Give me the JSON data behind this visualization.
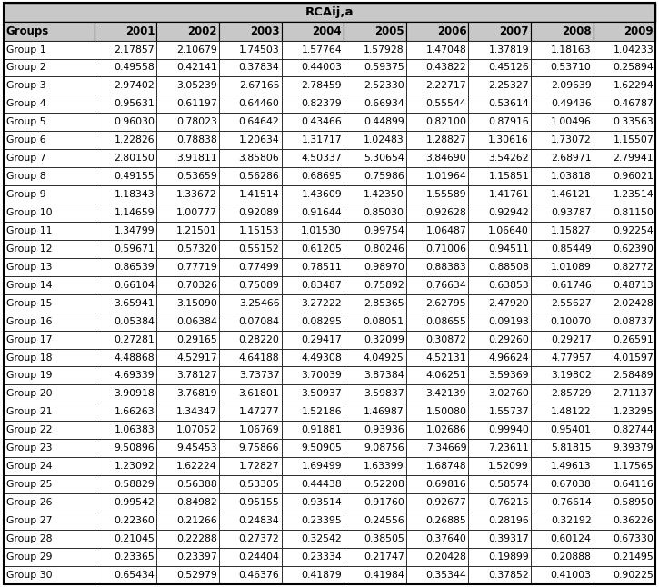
{
  "title": "RCAij,a",
  "columns": [
    "Groups",
    "2001",
    "2002",
    "2003",
    "2004",
    "2005",
    "2006",
    "2007",
    "2008",
    "2009"
  ],
  "rows": [
    [
      "Group 1",
      "2.17857",
      "2.10679",
      "1.74503",
      "1.57764",
      "1.57928",
      "1.47048",
      "1.37819",
      "1.18163",
      "1.04233"
    ],
    [
      "Group 2",
      "0.49558",
      "0.42141",
      "0.37834",
      "0.44003",
      "0.59375",
      "0.43822",
      "0.45126",
      "0.53710",
      "0.25894"
    ],
    [
      "Group 3",
      "2.97402",
      "3.05239",
      "2.67165",
      "2.78459",
      "2.52330",
      "2.22717",
      "2.25327",
      "2.09639",
      "1.62294"
    ],
    [
      "Group 4",
      "0.95631",
      "0.61197",
      "0.64460",
      "0.82379",
      "0.66934",
      "0.55544",
      "0.53614",
      "0.49436",
      "0.46787"
    ],
    [
      "Group 5",
      "0.96030",
      "0.78023",
      "0.64642",
      "0.43466",
      "0.44899",
      "0.82100",
      "0.87916",
      "1.00496",
      "0.33563"
    ],
    [
      "Group 6",
      "1.22826",
      "0.78838",
      "1.20634",
      "1.31717",
      "1.02483",
      "1.28827",
      "1.30616",
      "1.73072",
      "1.15507"
    ],
    [
      "Group 7",
      "2.80150",
      "3.91811",
      "3.85806",
      "4.50337",
      "5.30654",
      "3.84690",
      "3.54262",
      "2.68971",
      "2.79941"
    ],
    [
      "Group 8",
      "0.49155",
      "0.53659",
      "0.56286",
      "0.68695",
      "0.75986",
      "1.01964",
      "1.15851",
      "1.03818",
      "0.96021"
    ],
    [
      "Group 9",
      "1.18343",
      "1.33672",
      "1.41514",
      "1.43609",
      "1.42350",
      "1.55589",
      "1.41761",
      "1.46121",
      "1.23514"
    ],
    [
      "Group 10",
      "1.14659",
      "1.00777",
      "0.92089",
      "0.91644",
      "0.85030",
      "0.92628",
      "0.92942",
      "0.93787",
      "0.81150"
    ],
    [
      "Group 11",
      "1.34799",
      "1.21501",
      "1.15153",
      "1.01530",
      "0.99754",
      "1.06487",
      "1.06640",
      "1.15827",
      "0.92254"
    ],
    [
      "Group 12",
      "0.59671",
      "0.57320",
      "0.55152",
      "0.61205",
      "0.80246",
      "0.71006",
      "0.94511",
      "0.85449",
      "0.62390"
    ],
    [
      "Group 13",
      "0.86539",
      "0.77719",
      "0.77499",
      "0.78511",
      "0.98970",
      "0.88383",
      "0.88508",
      "1.01089",
      "0.82772"
    ],
    [
      "Group 14",
      "0.66104",
      "0.70326",
      "0.75089",
      "0.83487",
      "0.75892",
      "0.76634",
      "0.63853",
      "0.61746",
      "0.48713"
    ],
    [
      "Group 15",
      "3.65941",
      "3.15090",
      "3.25466",
      "3.27222",
      "2.85365",
      "2.62795",
      "2.47920",
      "2.55627",
      "2.02428"
    ],
    [
      "Group 16",
      "0.05384",
      "0.06384",
      "0.07084",
      "0.08295",
      "0.08051",
      "0.08655",
      "0.09193",
      "0.10070",
      "0.08737"
    ],
    [
      "Group 17",
      "0.27281",
      "0.29165",
      "0.28220",
      "0.29417",
      "0.32099",
      "0.30872",
      "0.29260",
      "0.29217",
      "0.26591"
    ],
    [
      "Group 18",
      "4.48868",
      "4.52917",
      "4.64188",
      "4.49308",
      "4.04925",
      "4.52131",
      "4.96624",
      "4.77957",
      "4.01597"
    ],
    [
      "Group 19",
      "4.69339",
      "3.78127",
      "3.73737",
      "3.70039",
      "3.87384",
      "4.06251",
      "3.59369",
      "3.19802",
      "2.58489"
    ],
    [
      "Group 20",
      "3.90918",
      "3.76819",
      "3.61801",
      "3.50937",
      "3.59837",
      "3.42139",
      "3.02760",
      "2.85729",
      "2.71137"
    ],
    [
      "Group 21",
      "1.66263",
      "1.34347",
      "1.47277",
      "1.52186",
      "1.46987",
      "1.50080",
      "1.55737",
      "1.48122",
      "1.23295"
    ],
    [
      "Group 22",
      "1.06383",
      "1.07052",
      "1.06769",
      "0.91881",
      "0.93936",
      "1.02686",
      "0.99940",
      "0.95401",
      "0.82744"
    ],
    [
      "Group 23",
      "9.50896",
      "9.45453",
      "9.75866",
      "9.50905",
      "9.08756",
      "7.34669",
      "7.23611",
      "5.81815",
      "9.39379"
    ],
    [
      "Group 24",
      "1.23092",
      "1.62224",
      "1.72827",
      "1.69499",
      "1.63399",
      "1.68748",
      "1.52099",
      "1.49613",
      "1.17565"
    ],
    [
      "Group 25",
      "0.58829",
      "0.56388",
      "0.53305",
      "0.44438",
      "0.52208",
      "0.69816",
      "0.58574",
      "0.67038",
      "0.64116"
    ],
    [
      "Group 26",
      "0.99542",
      "0.84982",
      "0.95155",
      "0.93514",
      "0.91760",
      "0.92677",
      "0.76215",
      "0.76614",
      "0.58950"
    ],
    [
      "Group 27",
      "0.22360",
      "0.21266",
      "0.24834",
      "0.23395",
      "0.24556",
      "0.26885",
      "0.28196",
      "0.32192",
      "0.36226"
    ],
    [
      "Group 28",
      "0.21045",
      "0.22288",
      "0.27372",
      "0.32542",
      "0.38505",
      "0.37640",
      "0.39317",
      "0.60124",
      "0.67330"
    ],
    [
      "Group 29",
      "0.23365",
      "0.23397",
      "0.24404",
      "0.23334",
      "0.21747",
      "0.20428",
      "0.19899",
      "0.20888",
      "0.21495"
    ],
    [
      "Group 30",
      "0.65434",
      "0.52979",
      "0.46376",
      "0.41879",
      "0.41984",
      "0.35344",
      "0.37852",
      "0.41003",
      "0.90225"
    ]
  ],
  "header_bg": "#c8c8c8",
  "title_bg": "#c8c8c8",
  "row_bg_odd": "#ffffff",
  "row_bg_even": "#ffffff",
  "border_color": "#000000",
  "text_color": "#000000",
  "header_fontsize": 8.5,
  "cell_fontsize": 7.8,
  "title_fontsize": 9.5,
  "fig_width": 7.25,
  "fig_height": 6.46,
  "dpi": 100
}
